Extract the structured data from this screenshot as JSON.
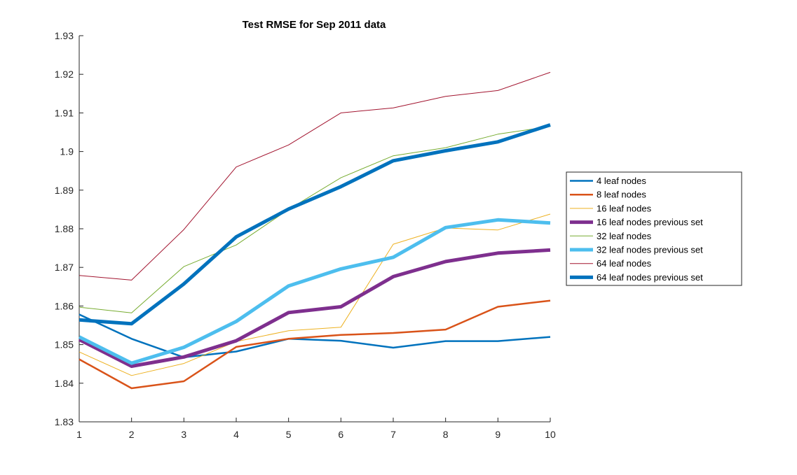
{
  "chart_data": {
    "type": "line",
    "title": "Test RMSE for Sep 2011 data",
    "xlabel": "",
    "ylabel": "",
    "xlim": [
      1,
      10
    ],
    "ylim": [
      1.83,
      1.93
    ],
    "x": [
      1,
      2,
      3,
      4,
      5,
      6,
      7,
      8,
      9,
      10
    ],
    "x_ticks": [
      "1",
      "2",
      "3",
      "4",
      "5",
      "6",
      "7",
      "8",
      "9",
      "10"
    ],
    "y_ticks": [
      {
        "value": 1.83,
        "label": "1.83"
      },
      {
        "value": 1.84,
        "label": "1.84"
      },
      {
        "value": 1.85,
        "label": "1.85"
      },
      {
        "value": 1.86,
        "label": "1.86"
      },
      {
        "value": 1.87,
        "label": "1.87"
      },
      {
        "value": 1.88,
        "label": "1.88"
      },
      {
        "value": 1.89,
        "label": "1.89"
      },
      {
        "value": 1.9,
        "label": "1.9"
      },
      {
        "value": 1.91,
        "label": "1.91"
      },
      {
        "value": 1.92,
        "label": "1.92"
      },
      {
        "value": 1.93,
        "label": "1.93"
      }
    ],
    "grid": false,
    "legend_position": "right",
    "series": [
      {
        "name": "4 leaf nodes",
        "color": "#0072bd",
        "weight": "medium",
        "values": [
          1.8578,
          1.8515,
          1.8467,
          1.8482,
          1.8515,
          1.851,
          1.8492,
          1.8509,
          1.8509,
          1.852
        ]
      },
      {
        "name": "8 leaf nodes",
        "color": "#d95319",
        "weight": "medium",
        "values": [
          1.8462,
          1.8387,
          1.8405,
          1.8494,
          1.8515,
          1.8525,
          1.853,
          1.8539,
          1.8598,
          1.8614
        ]
      },
      {
        "name": "16 leaf nodes",
        "color": "#edb120",
        "weight": "thin",
        "values": [
          1.8481,
          1.842,
          1.8451,
          1.8508,
          1.8536,
          1.8545,
          1.876,
          1.8802,
          1.8797,
          1.8838
        ]
      },
      {
        "name": "16 leaf nodes previous set",
        "color": "#7e2f8e",
        "weight": "thick",
        "values": [
          1.8513,
          1.8444,
          1.8468,
          1.851,
          1.8583,
          1.8598,
          1.8676,
          1.8715,
          1.8737,
          1.8745
        ]
      },
      {
        "name": "32 leaf nodes",
        "color": "#77ac30",
        "weight": "thin",
        "values": [
          1.8597,
          1.8582,
          1.8702,
          1.8758,
          1.885,
          1.8932,
          1.8989,
          1.901,
          1.9045,
          1.9065
        ]
      },
      {
        "name": "32 leaf nodes previous set",
        "color": "#4dbeee",
        "weight": "thick",
        "values": [
          1.852,
          1.8452,
          1.8493,
          1.856,
          1.8652,
          1.8696,
          1.8726,
          1.8803,
          1.8823,
          1.8815
        ]
      },
      {
        "name": "64 leaf nodes",
        "color": "#a2142f",
        "weight": "thin",
        "values": [
          1.8679,
          1.8667,
          1.8798,
          1.896,
          1.9017,
          1.91,
          1.9113,
          1.9143,
          1.9158,
          1.9205
        ]
      },
      {
        "name": "64 leaf nodes previous set",
        "color": "#0072bd",
        "weight": "thick",
        "values": [
          1.8564,
          1.8554,
          1.8657,
          1.8779,
          1.8851,
          1.8909,
          1.8976,
          1.9002,
          1.9025,
          1.9069
        ]
      }
    ]
  }
}
